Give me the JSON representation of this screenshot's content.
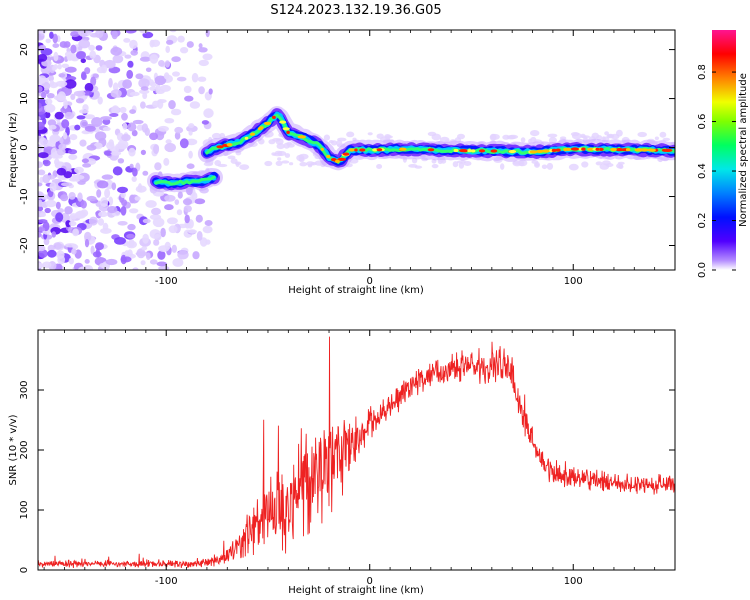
{
  "figure": {
    "title": "S124.2023.132.19.36.G05"
  },
  "chart_data": [
    {
      "type": "heatmap",
      "xlabel": "Height of straight line (km)",
      "ylabel": "Frequency (Hz)",
      "xlim": [
        -163,
        150
      ],
      "ylim": [
        -25,
        24
      ],
      "xticks": [
        -100,
        0,
        100
      ],
      "xtick_labels": [
        "-100",
        "0",
        "100"
      ],
      "yticks": [
        -20,
        -10,
        0,
        10,
        20
      ],
      "ytick_labels": [
        "-20",
        "-10",
        "0",
        "10",
        "20"
      ],
      "grid": false,
      "colorbar": {
        "label": "Normalized spectral amplitude",
        "range": [
          0,
          0.97
        ],
        "ticks": [
          0,
          0.2,
          0.4,
          0.6,
          0.8
        ],
        "tick_labels": [
          "0.0",
          "0.2",
          "0.4",
          "0.6",
          "0.8"
        ],
        "colormap": [
          "#ffffff",
          "#a070ff",
          "#3000ff",
          "#0000ff",
          "#00c8ff",
          "#00ff60",
          "#c8ff00",
          "#ff8000",
          "#ff0000",
          "#ff1480"
        ]
      },
      "ridge": {
        "x": [
          -80,
          -75,
          -70,
          -65,
          -60,
          -55,
          -50,
          -45,
          -40,
          -35,
          -30,
          -25,
          -20,
          -15,
          -10,
          0,
          20,
          40,
          60,
          80,
          100,
          120,
          150
        ],
        "y": [
          -1,
          0,
          0.5,
          1,
          2,
          3.5,
          5,
          7,
          3,
          2.5,
          1.5,
          0.5,
          -2,
          -3,
          -0.5,
          -0.5,
          -0.3,
          -0.6,
          -0.7,
          -0.9,
          -0.3,
          -0.4,
          -0.6
        ]
      },
      "secondary_branch": {
        "x": [
          -105,
          -98,
          -90,
          -82,
          -76
        ],
        "y": [
          -7,
          -7.3,
          -7,
          -6.8,
          -6
        ]
      },
      "noise_region": {
        "x": [
          -163,
          -78
        ],
        "y": [
          -25,
          24
        ]
      }
    },
    {
      "type": "line",
      "xlabel": "Height of straight line (km)",
      "ylabel": "SNR (10 * v/v)",
      "xlim": [
        -163,
        150
      ],
      "ylim": [
        0,
        400
      ],
      "xticks": [
        -100,
        0,
        100
      ],
      "xtick_labels": [
        "-100",
        "0",
        "100"
      ],
      "yticks": [
        0,
        100,
        200,
        300
      ],
      "ytick_labels": [
        "0",
        "100",
        "200",
        "300"
      ],
      "grid": false,
      "series": [
        {
          "color": "#ee2222",
          "x": [
            -163,
            -140,
            -120,
            -100,
            -85,
            -75,
            -68,
            -62,
            -55,
            -50,
            -45,
            -40,
            -35,
            -30,
            -25,
            -20,
            -15,
            -10,
            -5,
            0,
            5,
            10,
            15,
            20,
            30,
            40,
            50,
            60,
            65,
            70,
            72,
            75,
            80,
            85,
            90,
            100,
            110,
            120,
            130,
            140,
            150
          ],
          "values": [
            10,
            10,
            10,
            10,
            11,
            17,
            27,
            50,
            72,
            88,
            104,
            115,
            136,
            152,
            172,
            172,
            183,
            206,
            225,
            242,
            255,
            272,
            290,
            309,
            324,
            334,
            343,
            338,
            336,
            328,
            295,
            262,
            215,
            175,
            162,
            153,
            150,
            145,
            142,
            142,
            145
          ],
          "noise_amplitude": [
            5,
            5,
            5,
            5,
            6,
            9,
            15,
            30,
            45,
            60,
            70,
            75,
            80,
            80,
            80,
            75,
            65,
            45,
            30,
            22,
            20,
            20,
            20,
            20,
            20,
            22,
            25,
            28,
            28,
            28,
            25,
            25,
            22,
            20,
            18,
            16,
            14,
            14,
            14,
            14,
            14
          ]
        }
      ]
    }
  ]
}
